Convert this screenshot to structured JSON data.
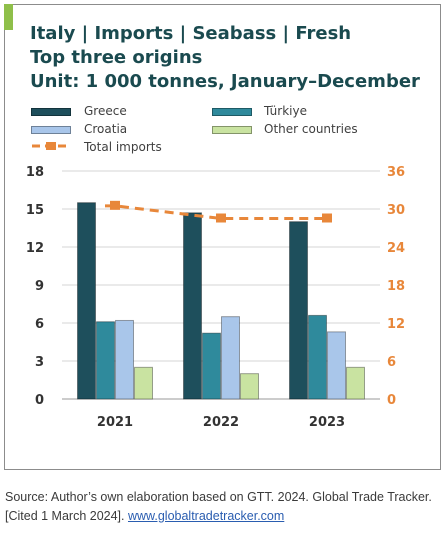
{
  "title": {
    "line1": "Italy | Imports | Seabass | Fresh",
    "line2": "Top three origins",
    "line3": "Unit: 1 000 tonnes, January–December"
  },
  "legend": {
    "greece": "Greece",
    "turkiye": "Türkiye",
    "croatia": "Croatia",
    "other": "Other countries",
    "total": "Total imports"
  },
  "source": {
    "text": "Source: Author’s own elaboration based on GTT. 2024. Global Trade Tracker. [Cited 1 March 2024]. ",
    "link": "www.globaltradetracker.com"
  },
  "chart_data": {
    "type": "bar",
    "categories": [
      "2021",
      "2022",
      "2023"
    ],
    "series": [
      {
        "name": "Greece",
        "values": [
          15.5,
          14.7,
          14.0
        ],
        "color": "#1e4f5c",
        "axis": "left"
      },
      {
        "name": "Türkiye",
        "values": [
          6.1,
          5.2,
          6.6
        ],
        "color": "#2f8a9c",
        "axis": "left"
      },
      {
        "name": "Croatia",
        "values": [
          6.2,
          6.5,
          5.3
        ],
        "color": "#a9c6ea",
        "axis": "left"
      },
      {
        "name": "Other countries",
        "values": [
          2.5,
          2.0,
          2.5
        ],
        "color": "#c9e3a1",
        "axis": "left"
      },
      {
        "name": "Total imports",
        "type": "line",
        "style": "dashed",
        "values": [
          30.5,
          28.5,
          28.5
        ],
        "color": "#e8873a",
        "axis": "right"
      }
    ],
    "ylim_left": [
      0,
      18
    ],
    "yticks_left": [
      0,
      3,
      6,
      9,
      12,
      15,
      18
    ],
    "ytick_labels_left": [
      "0",
      "3",
      "6",
      "9",
      "12",
      "15",
      "18"
    ],
    "ylim_right": [
      0,
      36
    ],
    "yticks_right": [
      0,
      6,
      12,
      18,
      24,
      30,
      36
    ],
    "ytick_labels_right": [
      "0",
      "6",
      "12",
      "18",
      "24",
      "30",
      "36"
    ],
    "grid": "horizontal",
    "legend_position": "top"
  }
}
